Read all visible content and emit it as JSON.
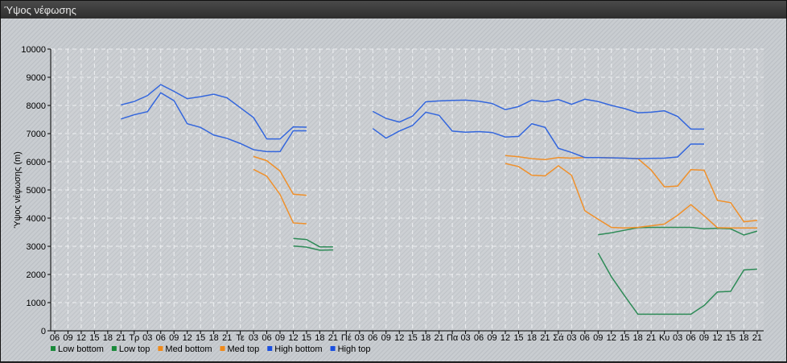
{
  "window": {
    "title": "Ύψος νέφωσης"
  },
  "chart_data": {
    "type": "line",
    "title": "",
    "ylabel": "Ύψος νέφωσης (m)",
    "xlabel": "",
    "ylim": [
      0,
      10000
    ],
    "yticks": [
      0,
      1000,
      2000,
      3000,
      4000,
      5000,
      6000,
      7000,
      8000,
      9000,
      10000
    ],
    "grid": true,
    "legend_position": "bottom-left",
    "x": [
      "06",
      "09",
      "12",
      "15",
      "18",
      "21",
      "Τρ",
      "03",
      "06",
      "09",
      "12",
      "15",
      "18",
      "21",
      "Τε",
      "03",
      "06",
      "09",
      "12",
      "15",
      "18",
      "21",
      "Πέ",
      "03",
      "06",
      "09",
      "12",
      "15",
      "18",
      "21",
      "Πα",
      "03",
      "06",
      "09",
      "12",
      "15",
      "18",
      "21",
      "Σά",
      "03",
      "06",
      "09",
      "12",
      "15",
      "18",
      "21",
      "Κυ",
      "03",
      "06",
      "09",
      "12",
      "15",
      "18",
      "21"
    ],
    "series": [
      {
        "name": "Low bottom",
        "color": "#2e8b57",
        "values": [
          null,
          null,
          null,
          null,
          null,
          null,
          null,
          null,
          null,
          null,
          null,
          null,
          null,
          null,
          null,
          null,
          null,
          null,
          3010,
          2970,
          2860,
          2870,
          null,
          null,
          null,
          null,
          null,
          null,
          null,
          null,
          null,
          null,
          null,
          null,
          null,
          null,
          null,
          null,
          null,
          null,
          null,
          2760,
          1920,
          1240,
          590,
          590,
          590,
          590,
          590,
          900,
          1380,
          1400,
          2160,
          2190
        ]
      },
      {
        "name": "Low top",
        "color": "#2e8b57",
        "values": [
          null,
          null,
          null,
          null,
          null,
          null,
          null,
          null,
          null,
          null,
          null,
          null,
          null,
          null,
          null,
          null,
          null,
          null,
          3280,
          3240,
          2980,
          2980,
          null,
          null,
          null,
          null,
          null,
          null,
          null,
          null,
          null,
          null,
          null,
          null,
          null,
          null,
          null,
          null,
          null,
          null,
          null,
          3410,
          3480,
          3570,
          3660,
          3670,
          3670,
          3670,
          3670,
          3620,
          3640,
          3620,
          3400,
          3540
        ]
      },
      {
        "name": "Med bottom",
        "color": "#f0902a",
        "values": [
          null,
          null,
          null,
          null,
          null,
          null,
          null,
          null,
          null,
          null,
          null,
          null,
          null,
          null,
          null,
          5730,
          5490,
          4840,
          3830,
          3800,
          null,
          null,
          null,
          null,
          null,
          null,
          null,
          null,
          null,
          null,
          null,
          null,
          null,
          null,
          5940,
          5830,
          5520,
          5500,
          5860,
          5520,
          4260,
          3960,
          3670,
          3650,
          3670,
          3730,
          3790,
          4100,
          4480,
          4080,
          3660,
          3650,
          3650,
          3650
        ]
      },
      {
        "name": "Med top",
        "color": "#f0902a",
        "values": [
          null,
          null,
          null,
          null,
          null,
          null,
          null,
          null,
          null,
          null,
          null,
          null,
          null,
          null,
          null,
          6190,
          6040,
          5670,
          4850,
          4810,
          null,
          null,
          null,
          null,
          null,
          null,
          null,
          null,
          null,
          null,
          null,
          null,
          null,
          null,
          6220,
          6180,
          6110,
          6080,
          6150,
          6130,
          6150,
          6150,
          6140,
          6130,
          6110,
          5710,
          5110,
          5140,
          5720,
          5700,
          4630,
          4550,
          3870,
          3920
        ]
      },
      {
        "name": "High bottom",
        "color": "#3366dd",
        "values": [
          null,
          null,
          null,
          null,
          null,
          7520,
          7670,
          7780,
          8450,
          8170,
          7350,
          7220,
          6950,
          6830,
          6650,
          6430,
          6360,
          6360,
          7100,
          7100,
          null,
          null,
          null,
          null,
          7180,
          6840,
          7090,
          7290,
          7760,
          7650,
          7090,
          7050,
          7070,
          7040,
          6880,
          6900,
          7350,
          7220,
          6480,
          6330,
          6150,
          6150,
          6140,
          6130,
          6110,
          6120,
          6130,
          6170,
          6630,
          6630,
          null,
          null,
          null,
          null
        ]
      },
      {
        "name": "High top",
        "color": "#3366dd",
        "values": [
          null,
          null,
          null,
          null,
          null,
          8020,
          8140,
          8350,
          8740,
          8500,
          8240,
          8310,
          8400,
          8270,
          7920,
          7570,
          6810,
          6810,
          7240,
          7230,
          null,
          null,
          null,
          null,
          7790,
          7540,
          7410,
          7620,
          8130,
          8160,
          8180,
          8190,
          8150,
          8070,
          7850,
          7960,
          8190,
          8130,
          8210,
          8040,
          8220,
          8140,
          8000,
          7890,
          7740,
          7760,
          7810,
          7610,
          7160,
          7160,
          null,
          null,
          null,
          null
        ]
      }
    ],
    "legend_colors": [
      "#1a8a3a",
      "#1a8a3a",
      "#f08a1a",
      "#f08a1a",
      "#1a4fe0",
      "#1a4fe0"
    ]
  }
}
